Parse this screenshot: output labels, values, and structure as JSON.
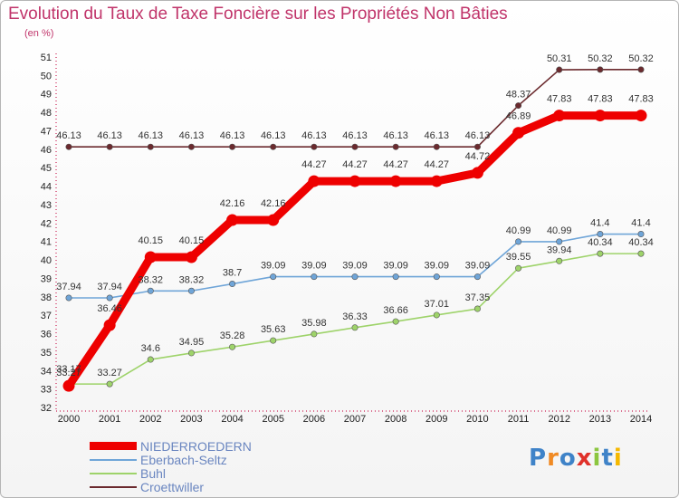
{
  "header": {
    "title": "Evolution du Taux de Taxe Foncière sur les Propriétés Non Bâties",
    "subtitle": "(en %)"
  },
  "chart_data": {
    "type": "line",
    "title": "Evolution du Taux de Taxe Foncière sur les Propriétés Non Bâties",
    "ylabel": "(en %)",
    "xlabel": "",
    "ylim": [
      32,
      51
    ],
    "grid": false,
    "yticks": [
      32,
      33,
      34,
      35,
      36,
      37,
      38,
      39,
      40,
      41,
      42,
      43,
      44,
      45,
      46,
      47,
      48,
      49,
      50,
      51
    ],
    "categories": [
      "2000",
      "2001",
      "2002",
      "2003",
      "2004",
      "2005",
      "2006",
      "2007",
      "2008",
      "2009",
      "2010",
      "2011",
      "2012",
      "2013",
      "2014"
    ],
    "series": [
      {
        "name": "Croettwiller",
        "color": "#6b2a2e",
        "values": [
          46.13,
          46.13,
          46.13,
          46.13,
          46.13,
          46.13,
          46.13,
          46.13,
          46.13,
          46.13,
          46.13,
          48.37,
          50.31,
          50.32,
          50.32
        ]
      },
      {
        "name": "Eberbach-Seltz",
        "color": "#6fa5d8",
        "values": [
          37.94,
          37.94,
          38.32,
          38.32,
          38.7,
          39.09,
          39.09,
          39.09,
          39.09,
          39.09,
          39.09,
          40.99,
          40.99,
          41.4,
          41.4
        ]
      },
      {
        "name": "Buhl",
        "color": "#9ed36a",
        "values": [
          33.27,
          33.27,
          34.6,
          34.95,
          35.28,
          35.63,
          35.98,
          36.33,
          36.66,
          37.01,
          37.35,
          39.55,
          39.94,
          40.34,
          40.34
        ]
      },
      {
        "name": "NIEDERROEDERN",
        "color": "#ee0000",
        "values": [
          33.17,
          36.46,
          40.15,
          40.15,
          42.16,
          42.16,
          44.27,
          44.27,
          44.27,
          44.27,
          44.72,
          46.89,
          47.83,
          47.83,
          47.83
        ]
      }
    ],
    "labels": {
      "Croettwiller": [
        "46.13",
        "46.13",
        "46.13",
        "46.13",
        "46.13",
        "46.13",
        "46.13",
        "46.13",
        "46.13",
        "46.13",
        "46.13",
        "48.37",
        "50.31",
        "50.32",
        "50.32"
      ],
      "Eberbach-Seltz": [
        "37.94",
        "37.94",
        "38.32",
        "38.32",
        "38.7",
        "39.09",
        "39.09",
        "39.09",
        "39.09",
        "39.09",
        "39.09",
        "40.99",
        "40.99",
        "41.4",
        "41.4"
      ],
      "Buhl": [
        "33.27",
        "33.27",
        "34.6",
        "34.95",
        "35.28",
        "35.63",
        "35.98",
        "36.33",
        "36.66",
        "37.01",
        "37.35",
        "39.55",
        "39.94",
        "40.34",
        "40.34"
      ],
      "NIEDERROEDERN": [
        "33.17",
        "36.46",
        "40.15",
        "40.15",
        "42.16",
        "42.16",
        "44.27",
        "44.27",
        "44.27",
        "44.27",
        "44.72",
        "46.89",
        "47.83",
        "47.83",
        "47.83"
      ]
    },
    "legend": [
      {
        "name": "NIEDERROEDERN",
        "color": "#ee0000"
      },
      {
        "name": "Eberbach-Seltz",
        "color": "#6fa5d8"
      },
      {
        "name": "Buhl",
        "color": "#9ed36a"
      },
      {
        "name": "Croettwiller",
        "color": "#6b2a2e"
      }
    ]
  },
  "logo": {
    "text": "Proxiti",
    "letters": [
      {
        "ch": "P",
        "color": "#3f83c8"
      },
      {
        "ch": "r",
        "color": "#f08a24"
      },
      {
        "ch": "o",
        "color": "#3f83c8"
      },
      {
        "ch": "x",
        "color": "#e0312a"
      },
      {
        "ch": "i",
        "color": "#8cc63f"
      },
      {
        "ch": "t",
        "color": "#3f83c8"
      },
      {
        "ch": "i",
        "color": "#f5b800"
      }
    ]
  }
}
